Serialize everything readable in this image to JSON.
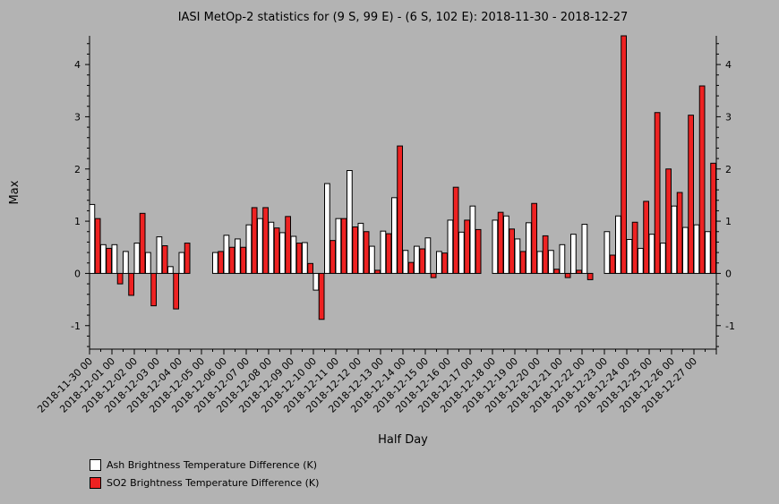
{
  "chart_data": {
    "type": "bar",
    "title": "IASI MetOp-2 statistics for (9 S, 99 E) - (6 S, 102 E): 2018-11-30 - 2018-12-27",
    "xlabel": "Half Day",
    "ylabel": "Max",
    "ylim": [
      -1.45,
      4.55
    ],
    "yticks": [
      -1,
      0,
      1,
      2,
      3,
      4
    ],
    "x_tick_labels": [
      "2018-11-30 00",
      "2018-12-01 00",
      "2018-12-02 00",
      "2018-12-03 00",
      "2018-12-04 00",
      "2018-12-05 00",
      "2018-12-06 00",
      "2018-12-07 00",
      "2018-12-08 00",
      "2018-12-09 00",
      "2018-12-10 00",
      "2018-12-11 00",
      "2018-12-12 00",
      "2018-12-13 00",
      "2018-12-14 00",
      "2018-12-15 00",
      "2018-12-16 00",
      "2018-12-17 00",
      "2018-12-18 00",
      "2018-12-19 00",
      "2018-12-20 00",
      "2018-12-21 00",
      "2018-12-22 00",
      "2018-12-23 00",
      "2018-12-24 00",
      "2018-12-25 00",
      "2018-12-26 00",
      "2018-12-27 00"
    ],
    "n_half_days": 56,
    "legend_position": "bottom-left",
    "series": [
      {
        "name": "Ash Brightness Temperature Difference (K)",
        "color": "#ffffff",
        "values": [
          1.32,
          0.55,
          0.55,
          0.42,
          0.58,
          0.4,
          0.7,
          0.13,
          0.4,
          null,
          null,
          0.4,
          0.73,
          0.66,
          0.93,
          1.05,
          0.98,
          0.78,
          0.71,
          0.59,
          -0.32,
          1.72,
          1.05,
          1.97,
          0.96,
          0.52,
          0.81,
          1.45,
          0.44,
          0.52,
          0.68,
          0.42,
          1.02,
          0.79,
          1.29,
          null,
          1.02,
          1.1,
          0.66,
          0.97,
          0.42,
          0.44,
          0.55,
          0.75,
          0.94,
          null,
          0.8,
          1.1,
          0.65,
          0.48,
          0.75,
          0.58,
          1.29,
          0.88,
          0.93,
          0.8
        ]
      },
      {
        "name": "SO2 Brightness Temperature Difference (K)",
        "color": "#ee2222",
        "values": [
          1.05,
          0.48,
          -0.2,
          -0.42,
          1.15,
          -0.62,
          0.53,
          -0.68,
          0.58,
          null,
          null,
          0.42,
          0.5,
          0.5,
          1.26,
          1.26,
          0.87,
          1.09,
          0.58,
          0.19,
          -0.88,
          0.63,
          1.05,
          0.89,
          0.8,
          0.06,
          0.76,
          2.44,
          0.21,
          0.47,
          -0.08,
          0.39,
          1.65,
          1.02,
          0.84,
          null,
          1.17,
          0.85,
          0.42,
          1.34,
          0.72,
          0.08,
          -0.08,
          0.06,
          -0.12,
          null,
          0.35,
          4.55,
          0.98,
          1.38,
          3.08,
          2.0,
          1.55,
          3.03,
          3.59,
          2.11
        ]
      }
    ]
  }
}
